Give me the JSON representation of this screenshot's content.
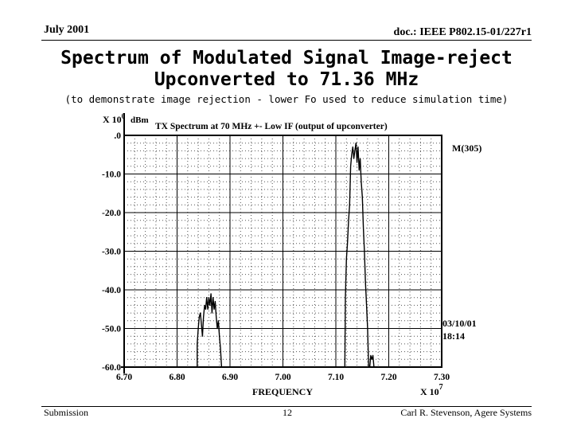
{
  "header": {
    "date": "July 2001",
    "doc": "doc.: IEEE P802.15-01/227r1"
  },
  "slide": {
    "title_line1": "Spectrum of Modulated Signal Image-reject",
    "title_line2": "Upconverted to 71.36 MHz",
    "subtitle": "(to demonstrate image rejection - lower Fo used to reduce simulation time)"
  },
  "footer": {
    "left": "Submission",
    "page": "12",
    "author": "Carl R. Stevenson, Agere Systems"
  },
  "chart_data": {
    "type": "line",
    "title": "TX Spectrum at 70 MHz +- Low IF (output of upconverter)",
    "xlabel": "FREQUENCY",
    "x_multiplier": "X 10",
    "x_multiplier_exp": "7",
    "y_multiplier": "X 10",
    "y_multiplier_exp": "0",
    "yunit": "dBm",
    "xlim": [
      6.7,
      7.3
    ],
    "ylim": [
      -60.0,
      0.0
    ],
    "x_ticks": [
      "6.70",
      "6.80",
      "6.90",
      "7.00",
      "7.10",
      "7.20",
      "7.30"
    ],
    "y_ticks": [
      ".0",
      "-10.0",
      "-20.0",
      "-30.0",
      "-40.0",
      "-50.0",
      "-60.0"
    ],
    "grid": true,
    "marker_label": "M(305)",
    "timestamp_date": "03/10/01",
    "timestamp_time": "18:14",
    "series": [
      {
        "color": "#000000",
        "segments": [
          [
            [
              6.838,
              -60
            ],
            [
              6.838,
              -54
            ],
            [
              6.84,
              -50
            ],
            [
              6.842,
              -47
            ],
            [
              6.844,
              -46
            ],
            [
              6.846,
              -49
            ],
            [
              6.848,
              -52
            ],
            [
              6.85,
              -47
            ],
            [
              6.852,
              -44
            ],
            [
              6.854,
              -45
            ],
            [
              6.856,
              -42
            ],
            [
              6.858,
              -45
            ],
            [
              6.86,
              -42
            ],
            [
              6.862,
              -44
            ],
            [
              6.864,
              -41
            ],
            [
              6.866,
              -46
            ],
            [
              6.868,
              -42
            ],
            [
              6.87,
              -45
            ],
            [
              6.872,
              -43
            ],
            [
              6.874,
              -47
            ],
            [
              6.876,
              -50
            ],
            [
              6.878,
              -48
            ],
            [
              6.88,
              -52
            ],
            [
              6.882,
              -55
            ],
            [
              6.884,
              -60
            ]
          ],
          [
            [
              7.117,
              -60
            ],
            [
              7.118,
              -42
            ],
            [
              7.12,
              -32
            ],
            [
              7.122,
              -28
            ],
            [
              7.124,
              -22
            ],
            [
              7.126,
              -18
            ],
            [
              7.128,
              -8
            ],
            [
              7.13,
              -5
            ],
            [
              7.132,
              -3
            ],
            [
              7.134,
              -6
            ],
            [
              7.136,
              -4
            ],
            [
              7.138,
              -2
            ],
            [
              7.14,
              -7
            ],
            [
              7.142,
              -3
            ],
            [
              7.144,
              -9
            ],
            [
              7.146,
              -6
            ],
            [
              7.148,
              -12
            ],
            [
              7.15,
              -16
            ],
            [
              7.152,
              -24
            ],
            [
              7.154,
              -30
            ],
            [
              7.156,
              -38
            ],
            [
              7.158,
              -44
            ],
            [
              7.16,
              -50
            ],
            [
              7.162,
              -60
            ]
          ],
          [
            [
              7.164,
              -60
            ],
            [
              7.166,
              -57
            ],
            [
              7.168,
              -58
            ],
            [
              7.17,
              -57
            ],
            [
              7.172,
              -60
            ]
          ]
        ]
      }
    ]
  }
}
